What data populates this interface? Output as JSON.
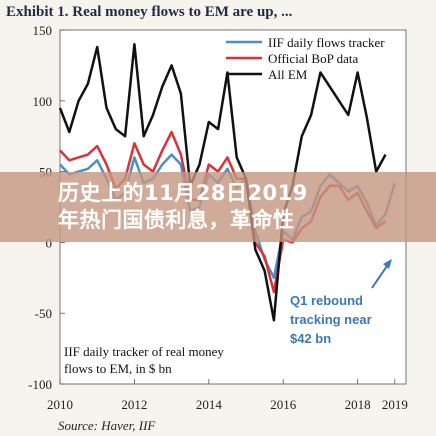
{
  "title": "Exhibit 1. Real money flows to EM are up, ...",
  "overlay_banner": {
    "line1": "历史上的11月28日2019",
    "line2": "年热门国债利息，革命性"
  },
  "colors": {
    "iif": "#4a90c8",
    "bop": "#d9333a",
    "all_em": "#111111",
    "accent": "#3b78b8",
    "banner": "#c69680"
  },
  "chart_data": {
    "type": "line",
    "xlim": [
      2010,
      2019.3
    ],
    "ylim": [
      -100,
      150
    ],
    "xticks": [
      "2010",
      "2012",
      "2014",
      "2016",
      "2018",
      "2019"
    ],
    "yticks": [
      "150",
      "100",
      "50",
      "0",
      "-50",
      "-100"
    ],
    "grid": false,
    "legend_position": "top-right",
    "legend": [
      "IIF daily flows tracker",
      "Official BoP data",
      "All EM"
    ],
    "annotations": {
      "note": [
        "IIF daily tracker of real money",
        "flows to EM, in $ bn"
      ],
      "rebound": [
        "Q1 rebound",
        "tracking near",
        "$42 bn"
      ]
    },
    "source": "Source: Haver, IIF",
    "series": [
      {
        "name": "IIF daily flows tracker",
        "x": [
          2010.0,
          2010.25,
          2010.5,
          2010.75,
          2011.0,
          2011.25,
          2011.5,
          2011.75,
          2012.0,
          2012.25,
          2012.5,
          2012.75,
          2013.0,
          2013.25,
          2013.5,
          2013.75,
          2014.0,
          2014.25,
          2014.5,
          2014.75,
          2015.0,
          2015.25,
          2015.5,
          2015.75,
          2016.0,
          2016.25,
          2016.5,
          2016.75,
          2017.0,
          2017.25,
          2017.5,
          2017.75,
          2018.0,
          2018.25,
          2018.5,
          2018.75,
          2019.0
        ],
        "values": [
          55,
          48,
          50,
          52,
          58,
          45,
          30,
          35,
          60,
          42,
          45,
          55,
          62,
          55,
          22,
          25,
          48,
          42,
          52,
          38,
          45,
          8,
          -12,
          -25,
          8,
          2,
          18,
          22,
          40,
          48,
          42,
          36,
          40,
          28,
          12,
          20,
          42
        ]
      },
      {
        "name": "Official BoP data",
        "x": [
          2010.0,
          2010.25,
          2010.5,
          2010.75,
          2011.0,
          2011.25,
          2011.5,
          2011.75,
          2012.0,
          2012.25,
          2012.5,
          2012.75,
          2013.0,
          2013.25,
          2013.5,
          2013.75,
          2014.0,
          2014.25,
          2014.5,
          2014.75,
          2015.0,
          2015.25,
          2015.5,
          2015.75,
          2016.0,
          2016.25,
          2016.5,
          2016.75,
          2017.0,
          2017.25,
          2017.5,
          2017.75,
          2018.0,
          2018.25,
          2018.5,
          2018.75
        ],
        "values": [
          65,
          58,
          60,
          62,
          68,
          55,
          38,
          45,
          70,
          55,
          50,
          65,
          78,
          62,
          30,
          30,
          55,
          50,
          60,
          45,
          45,
          0,
          -10,
          -35,
          2,
          0,
          10,
          15,
          32,
          40,
          40,
          30,
          35,
          22,
          10,
          15
        ]
      },
      {
        "name": "All EM",
        "x": [
          2010.0,
          2010.25,
          2010.5,
          2010.75,
          2011.0,
          2011.25,
          2011.5,
          2011.75,
          2012.0,
          2012.25,
          2012.5,
          2012.75,
          2013.0,
          2013.25,
          2013.5,
          2013.75,
          2014.0,
          2014.25,
          2014.5,
          2014.75,
          2015.0,
          2015.25,
          2015.5,
          2015.75,
          2016.0,
          2016.25,
          2016.5,
          2016.75,
          2017.0,
          2017.25,
          2017.5,
          2017.75,
          2018.0,
          2018.25,
          2018.5,
          2018.75
        ],
        "values": [
          95,
          78,
          100,
          112,
          138,
          95,
          80,
          75,
          140,
          75,
          90,
          110,
          125,
          105,
          40,
          55,
          85,
          80,
          120,
          60,
          45,
          -5,
          -20,
          -55,
          20,
          40,
          75,
          90,
          120,
          110,
          100,
          90,
          120,
          88,
          50,
          62
        ]
      }
    ]
  }
}
